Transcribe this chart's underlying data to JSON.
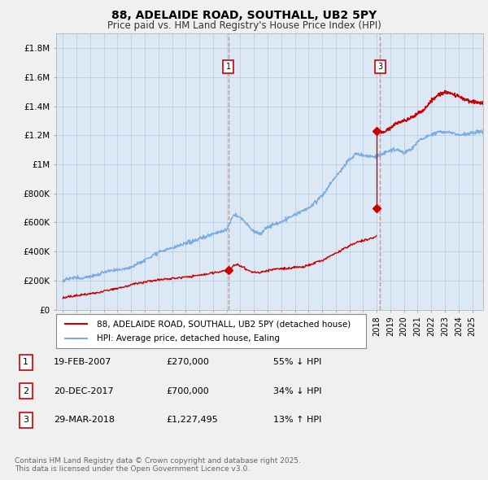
{
  "title1": "88, ADELAIDE ROAD, SOUTHALL, UB2 5PY",
  "title2": "Price paid vs. HM Land Registry's House Price Index (HPI)",
  "ylim": [
    0,
    1900000
  ],
  "yticks": [
    0,
    200000,
    400000,
    600000,
    800000,
    1000000,
    1200000,
    1400000,
    1600000,
    1800000
  ],
  "ytick_labels": [
    "£0",
    "£200K",
    "£400K",
    "£600K",
    "£800K",
    "£1M",
    "£1.2M",
    "£1.4M",
    "£1.6M",
    "£1.8M"
  ],
  "red_color": "#cc0000",
  "blue_color": "#7aace0",
  "vline_color": "#e87878",
  "background_color": "#f0f0f0",
  "plot_bg_color": "#dce9f5",
  "grid_color": "#b0c8e0",
  "transactions": [
    {
      "num": 1,
      "date_num": 2007.13,
      "price": 270000,
      "label": "1",
      "desc": "19-FEB-2007",
      "amount": "£270,000",
      "hpi_rel": "55% ↓ HPI"
    },
    {
      "num": 2,
      "date_num": 2017.97,
      "price": 700000,
      "label": "2",
      "desc": "20-DEC-2017",
      "amount": "£700,000",
      "hpi_rel": "34% ↓ HPI"
    },
    {
      "num": 3,
      "date_num": 2018.25,
      "price": 1227495,
      "label": "3",
      "desc": "29-MAR-2018",
      "amount": "£1,227,495",
      "hpi_rel": "13% ↑ HPI"
    }
  ],
  "vline_transactions": [
    1,
    3
  ],
  "legend_red": "88, ADELAIDE ROAD, SOUTHALL, UB2 5PY (detached house)",
  "legend_blue": "HPI: Average price, detached house, Ealing",
  "footer": "Contains HM Land Registry data © Crown copyright and database right 2025.\nThis data is licensed under the Open Government Licence v3.0.",
  "xmin": 1994.5,
  "xmax": 2025.8
}
